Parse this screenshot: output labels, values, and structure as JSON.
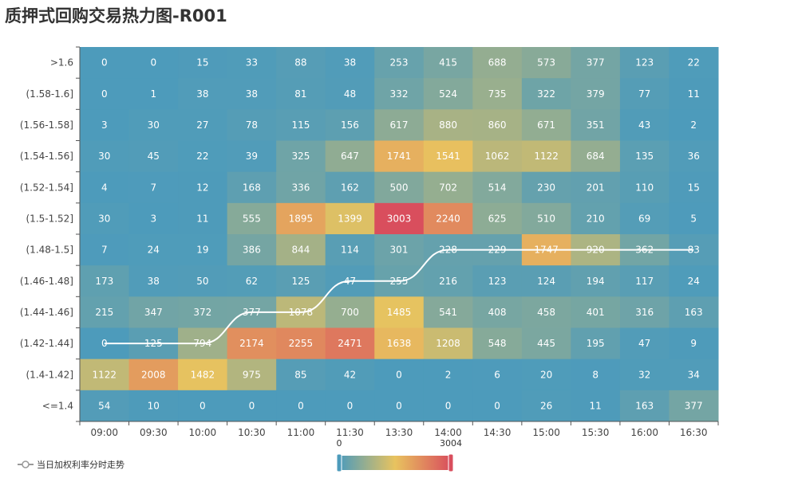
{
  "chart_data": {
    "type": "heatmap",
    "title": "质押式回购交易热力图-R001",
    "x_categories": [
      "09:00",
      "09:30",
      "10:00",
      "10:30",
      "11:00",
      "11:30",
      "13:30",
      "14:00",
      "14:30",
      "15:00",
      "15:30",
      "16:00",
      "16:30"
    ],
    "y_categories": [
      ">1.6",
      "(1.58-1.6]",
      "(1.56-1.58]",
      "(1.54-1.56]",
      "(1.52-1.54]",
      "(1.5-1.52]",
      "(1.48-1.5]",
      "(1.46-1.48]",
      "(1.44-1.46]",
      "(1.42-1.44]",
      "(1.4-1.42]",
      "<=1.4"
    ],
    "values": [
      [
        0,
        0,
        15,
        33,
        88,
        38,
        253,
        415,
        688,
        573,
        377,
        123,
        22
      ],
      [
        0,
        1,
        38,
        38,
        81,
        48,
        332,
        524,
        735,
        322,
        379,
        77,
        11
      ],
      [
        3,
        30,
        27,
        78,
        115,
        156,
        617,
        880,
        860,
        671,
        351,
        43,
        2
      ],
      [
        30,
        45,
        22,
        39,
        325,
        647,
        1741,
        1541,
        1062,
        1122,
        684,
        135,
        36
      ],
      [
        4,
        7,
        12,
        168,
        336,
        162,
        500,
        702,
        514,
        230,
        201,
        110,
        15
      ],
      [
        30,
        3,
        11,
        555,
        1895,
        1399,
        3003,
        2240,
        625,
        510,
        210,
        69,
        5
      ],
      [
        7,
        24,
        19,
        386,
        844,
        114,
        301,
        228,
        229,
        1747,
        920,
        362,
        83
      ],
      [
        173,
        38,
        50,
        62,
        125,
        47,
        255,
        216,
        123,
        124,
        194,
        117,
        24
      ],
      [
        215,
        347,
        372,
        377,
        1078,
        700,
        1485,
        541,
        408,
        458,
        401,
        316,
        163
      ],
      [
        0,
        125,
        794,
        2174,
        2255,
        2471,
        1638,
        1208,
        548,
        445,
        195,
        47,
        9
      ],
      [
        1122,
        2008,
        1482,
        975,
        85,
        42,
        0,
        2,
        6,
        20,
        8,
        32,
        34
      ],
      [
        54,
        10,
        0,
        0,
        0,
        0,
        0,
        0,
        0,
        26,
        11,
        163,
        377
      ]
    ],
    "visual_map": {
      "min": 0,
      "max": 3004,
      "min_label": "0",
      "max_label": "3004",
      "colors": [
        "#4d9bbb",
        "#e8c35f",
        "#d94e5d"
      ]
    },
    "trend_series": {
      "name": "当日加权利率分时走势",
      "row_index": [
        9,
        9,
        9,
        8,
        8,
        7,
        7,
        6,
        6,
        6,
        6,
        6,
        6
      ],
      "color": "#ffffff"
    },
    "legend_position": "bottom-left"
  }
}
